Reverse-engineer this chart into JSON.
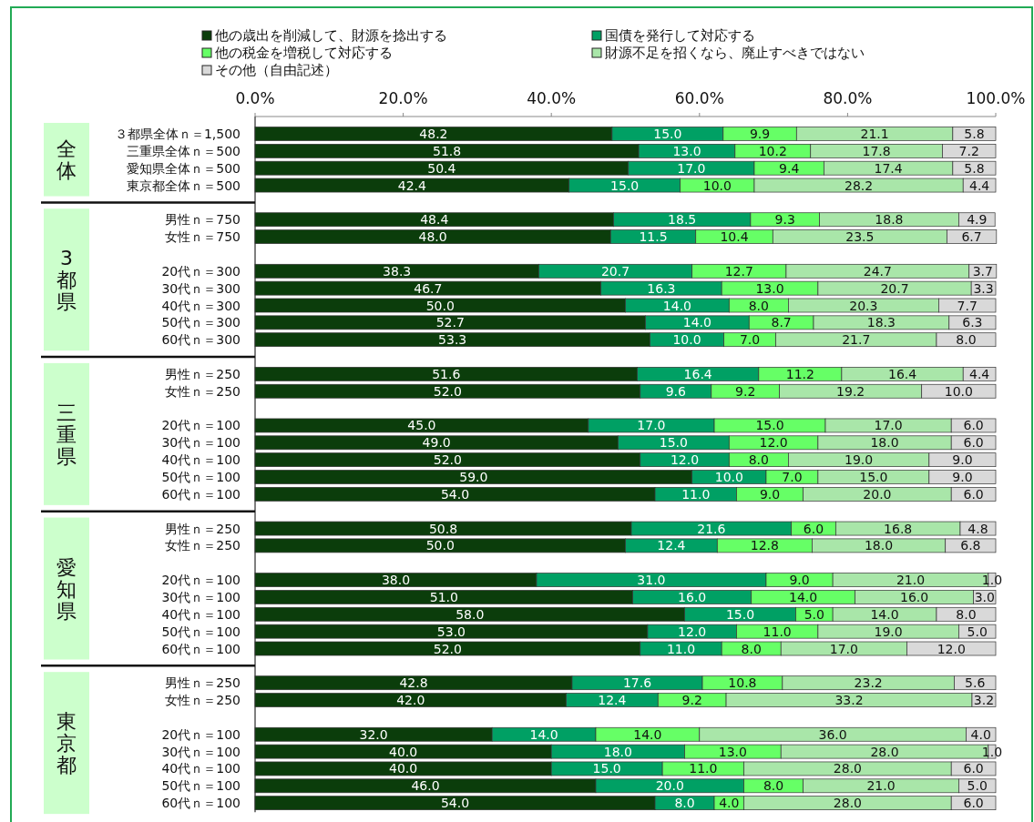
{
  "chart_data": {
    "type": "bar",
    "orientation": "horizontal",
    "stacked": true,
    "legend": "top",
    "grid": false,
    "xlim": [
      0,
      100
    ],
    "xticks": [
      {
        "value": 0,
        "label": "0.0%"
      },
      {
        "value": 20,
        "label": "20.0%"
      },
      {
        "value": 40,
        "label": "40.0%"
      },
      {
        "value": 60,
        "label": "60.0%"
      },
      {
        "value": 80,
        "label": "80.0%"
      },
      {
        "value": 100,
        "label": "100.0%"
      }
    ],
    "categories": [
      "３都県全体ｎ＝1,500",
      "三重県全体ｎ＝500",
      "愛知県全体ｎ＝500",
      "東京都全体ｎ＝500",
      null,
      "男性ｎ＝750",
      "女性ｎ＝750",
      null,
      "20代ｎ＝300",
      "30代ｎ＝300",
      "40代ｎ＝300",
      "50代ｎ＝300",
      "60代ｎ＝300",
      null,
      "男性ｎ＝250",
      "女性ｎ＝250",
      null,
      "20代ｎ＝100",
      "30代ｎ＝100",
      "40代ｎ＝100",
      "50代ｎ＝100",
      "60代ｎ＝100",
      null,
      "男性ｎ＝250",
      "女性ｎ＝250",
      null,
      "20代ｎ＝100",
      "30代ｎ＝100",
      "40代ｎ＝100",
      "50代ｎ＝100",
      "60代ｎ＝100",
      null,
      "男性ｎ＝250",
      "女性ｎ＝250",
      null,
      "20代ｎ＝100",
      "30代ｎ＝100",
      "40代ｎ＝100",
      "50代ｎ＝100",
      "60代ｎ＝100"
    ],
    "series": [
      {
        "name": "他の歳出を削減して、財源を捻出する",
        "color": "#0b3d0b",
        "values": [
          48.2,
          51.8,
          50.4,
          42.4,
          null,
          48.4,
          48.0,
          null,
          38.3,
          46.7,
          50.0,
          52.7,
          53.3,
          null,
          51.6,
          52.0,
          null,
          45.0,
          49.0,
          52.0,
          59.0,
          54.0,
          null,
          50.8,
          50.0,
          null,
          38.0,
          51.0,
          58.0,
          53.0,
          52.0,
          null,
          42.8,
          42.0,
          null,
          32.0,
          40.0,
          40.0,
          46.0,
          54.0
        ],
        "value_labels": [
          "48.2",
          "51.8",
          "50.4",
          "42.4",
          null,
          "48.4",
          "48.0",
          null,
          "38.3",
          "46.7",
          "50.0",
          "52.7",
          "53.3",
          null,
          "51.6",
          "52.0",
          null,
          "45.0",
          "49.0",
          "52.0",
          "59.0",
          "54.0",
          null,
          "50.8",
          "50.0",
          null,
          "38.0",
          "51.0",
          "58.0",
          "53.0",
          "52.0",
          null,
          "42.8",
          "42.0",
          null,
          "32.0",
          "40.0",
          "40.0",
          "46.0",
          "54.0"
        ]
      },
      {
        "name": "国債を発行して対応する",
        "color": "#00a064",
        "values": [
          15.0,
          13.0,
          17.0,
          15.0,
          null,
          18.5,
          11.5,
          null,
          20.7,
          16.3,
          14.0,
          14.0,
          10.0,
          null,
          16.4,
          9.6,
          null,
          17.0,
          15.0,
          12.0,
          10.0,
          11.0,
          null,
          21.6,
          12.4,
          null,
          31.0,
          16.0,
          15.0,
          12.0,
          11.0,
          null,
          17.6,
          12.4,
          null,
          14.0,
          18.0,
          15.0,
          20.0,
          8.0
        ],
        "value_labels": [
          "15.0",
          "13.0",
          "17.0",
          "15.0",
          null,
          "18.5",
          "11.5",
          null,
          "20.7",
          "16.3",
          "14.0",
          "14.0",
          "10.0",
          null,
          "16.4",
          "9.6",
          null,
          "17.0",
          "15.0",
          "12.0",
          "10.0",
          "11.0",
          null,
          "21.6",
          "12.4",
          null,
          "31.0",
          "16.0",
          "15.0",
          "12.0",
          "11.0",
          null,
          "17.6",
          "12.4",
          null,
          "14.0",
          "18.0",
          "15.0",
          "20.0",
          "8.0"
        ]
      },
      {
        "name": "他の税金を増税して対応する",
        "color": "#66ff66",
        "values": [
          9.9,
          10.2,
          9.4,
          10.0,
          null,
          9.3,
          10.4,
          null,
          12.7,
          13.0,
          8.0,
          8.7,
          7.0,
          null,
          11.2,
          9.2,
          null,
          15.0,
          12.0,
          8.0,
          7.0,
          9.0,
          null,
          6.0,
          12.8,
          null,
          9.0,
          14.0,
          5.0,
          11.0,
          8.0,
          null,
          10.8,
          9.2,
          null,
          14.0,
          13.0,
          11.0,
          8.0,
          4.0
        ],
        "value_labels": [
          "9.9",
          "10.2",
          "9.4",
          "10.0",
          null,
          "9.3",
          "10.4",
          null,
          "12.7",
          "13.0",
          "8.0",
          "8.7",
          "7.0",
          null,
          "11.2",
          "9.2",
          null,
          "15.0",
          "12.0",
          "8.0",
          "7.0",
          "9.0",
          null,
          "6.0",
          "12.8",
          null,
          "9.0",
          "14.0",
          "5.0",
          "11.0",
          "8.0",
          null,
          "10.8",
          "9.2",
          null,
          "14.0",
          "13.0",
          "11.0",
          "8.0",
          "4.0"
        ]
      },
      {
        "name": "財源不足を招くなら、廃止すべきではない",
        "color": "#a9e6a9",
        "values": [
          21.1,
          17.8,
          17.4,
          28.2,
          null,
          18.8,
          23.5,
          null,
          24.7,
          20.7,
          20.3,
          18.3,
          21.7,
          null,
          16.4,
          19.2,
          null,
          17.0,
          18.0,
          19.0,
          15.0,
          20.0,
          null,
          16.8,
          18.0,
          null,
          21.0,
          16.0,
          14.0,
          19.0,
          17.0,
          null,
          23.2,
          33.2,
          null,
          36.0,
          28.0,
          28.0,
          21.0,
          28.0
        ],
        "value_labels": [
          "21.1",
          "17.8",
          "17.4",
          "28.2",
          null,
          "18.8",
          "23.5",
          null,
          "24.7",
          "20.7",
          "20.3",
          "18.3",
          "21.7",
          null,
          "16.4",
          "19.2",
          null,
          "17.0",
          "18.0",
          "19.0",
          "15.0",
          "20.0",
          null,
          "16.8",
          "18.0",
          null,
          "21.0",
          "16.0",
          "14.0",
          "19.0",
          "17.0",
          null,
          "23.2",
          "33.2",
          null,
          "36.0",
          "28.0",
          "28.0",
          "21.0",
          "28.0"
        ]
      },
      {
        "name": "その他（自由記述）",
        "color": "#d9d9d9",
        "values": [
          5.8,
          7.2,
          5.8,
          4.4,
          null,
          4.9,
          6.7,
          null,
          3.7,
          3.3,
          7.7,
          6.3,
          8.0,
          null,
          4.4,
          10.0,
          null,
          6.0,
          6.0,
          9.0,
          9.0,
          6.0,
          null,
          4.8,
          6.8,
          null,
          1.0,
          3.0,
          8.0,
          5.0,
          12.0,
          null,
          5.6,
          3.2,
          null,
          4.0,
          1.0,
          6.0,
          5.0,
          6.0
        ],
        "value_labels": [
          "5.8",
          "7.2",
          "5.8",
          "4.4",
          null,
          "4.9",
          "6.7",
          null,
          "3.7",
          "3.3",
          "7.7",
          "6.3",
          "8.0",
          null,
          "4.4",
          "10.0",
          null,
          "6.0",
          "6.0",
          "9.0",
          "9.0",
          "6.0",
          null,
          "4.8",
          "6.8",
          null,
          "1.0",
          "3.0",
          "8.0",
          "5.0",
          "12.0",
          null,
          "5.6",
          "3.2",
          null,
          "4.0",
          "1.0",
          "6.0",
          "5.0",
          "6.0"
        ]
      }
    ],
    "annotations": [
      "全体",
      "3都県",
      "三重県",
      "愛知県",
      "東京都"
    ]
  }
}
